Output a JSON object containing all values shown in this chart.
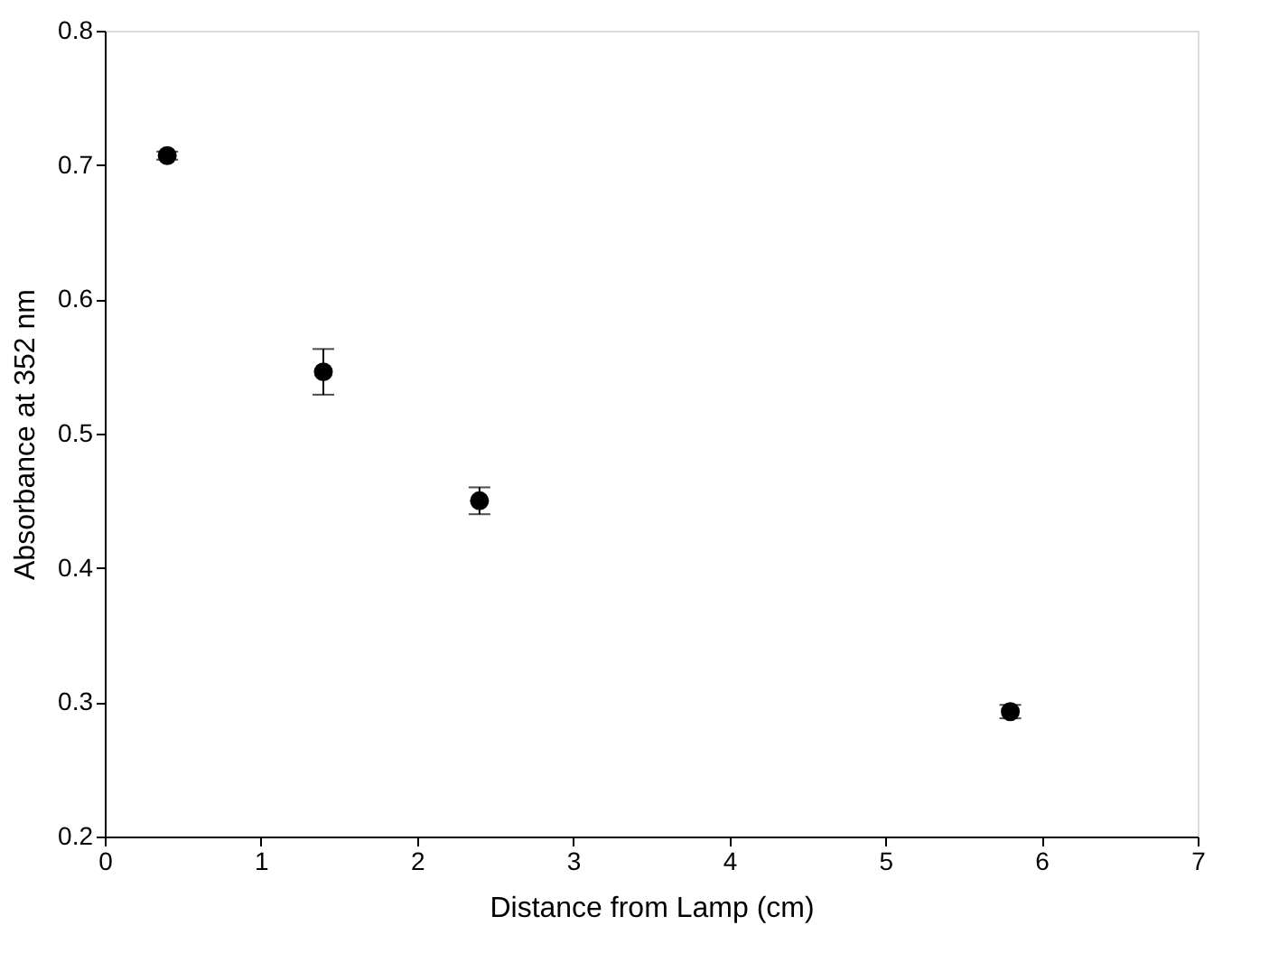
{
  "chart_data": {
    "type": "scatter",
    "xlabel": "Distance from Lamp (cm)",
    "ylabel": "Absorbance at 352 nm",
    "x": [
      0.4,
      1.4,
      2.4,
      5.8
    ],
    "series": [
      {
        "color": "#000000",
        "values": [
          0.707,
          0.546,
          0.45,
          0.293
        ],
        "errors": [
          0.003,
          0.017,
          0.01,
          0.005
        ]
      }
    ],
    "xlim": [
      0,
      7
    ],
    "xticks": [
      0,
      1,
      2,
      3,
      4,
      5,
      6,
      7
    ],
    "ylim": [
      0.2,
      0.8
    ],
    "yticks": [
      0.2,
      0.3,
      0.4,
      0.5,
      0.6,
      0.7,
      0.8
    ],
    "marker": "circle",
    "grid": false
  }
}
